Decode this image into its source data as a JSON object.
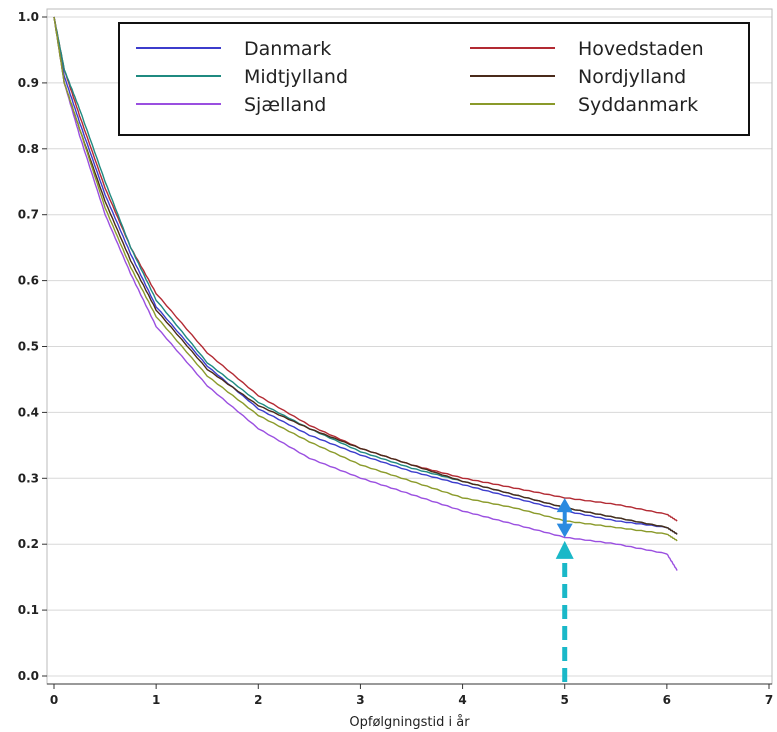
{
  "chart_data": {
    "type": "line",
    "xlabel": "Opfølgningstid i år",
    "ylabel": "",
    "xlim": [
      0,
      7
    ],
    "ylim": [
      0,
      1
    ],
    "x_ticks": [
      "0",
      "1",
      "2",
      "3",
      "4",
      "5",
      "6",
      "7"
    ],
    "y_ticks": [
      "0.0",
      "0.1",
      "0.2",
      "0.3",
      "0.4",
      "0.5",
      "0.6",
      "0.7",
      "0.8",
      "0.9",
      "1.0"
    ],
    "grid": "horizontal",
    "legend_position": "top-right",
    "series": [
      {
        "name": "Danmark",
        "color": "#3c3ccc",
        "x": [
          0,
          0.1,
          0.25,
          0.5,
          0.75,
          1,
          1.5,
          2,
          2.5,
          3,
          3.5,
          4,
          4.5,
          5,
          5.5,
          6,
          6.1
        ],
        "y": [
          1.0,
          0.91,
          0.84,
          0.73,
          0.64,
          0.56,
          0.47,
          0.405,
          0.365,
          0.335,
          0.31,
          0.29,
          0.27,
          0.25,
          0.235,
          0.225,
          0.215
        ]
      },
      {
        "name": "Hovedstaden",
        "color": "#b22a33",
        "x": [
          0,
          0.1,
          0.25,
          0.5,
          0.75,
          1,
          1.5,
          2,
          2.5,
          3,
          3.5,
          4,
          4.5,
          5,
          5.5,
          6,
          6.1
        ],
        "y": [
          1.0,
          0.92,
          0.85,
          0.74,
          0.65,
          0.58,
          0.49,
          0.425,
          0.38,
          0.345,
          0.32,
          0.3,
          0.285,
          0.27,
          0.26,
          0.245,
          0.235
        ]
      },
      {
        "name": "Midtjylland",
        "color": "#1f8a80",
        "x": [
          0,
          0.1,
          0.25,
          0.5,
          0.75,
          1,
          1.5,
          2,
          2.5,
          3,
          3.5,
          4,
          4.5,
          5,
          5.5,
          6,
          6.1
        ],
        "y": [
          1.0,
          0.92,
          0.86,
          0.75,
          0.65,
          0.57,
          0.475,
          0.415,
          0.375,
          0.34,
          0.315,
          0.295,
          0.275,
          0.255,
          0.24,
          0.225,
          0.215
        ]
      },
      {
        "name": "Nordjylland",
        "color": "#4a2a1a",
        "x": [
          0,
          0.1,
          0.25,
          0.5,
          0.75,
          1,
          1.5,
          2,
          2.5,
          3,
          3.5,
          4,
          4.5,
          5,
          5.5,
          6,
          6.1
        ],
        "y": [
          1.0,
          0.9,
          0.83,
          0.72,
          0.63,
          0.555,
          0.465,
          0.41,
          0.375,
          0.345,
          0.32,
          0.295,
          0.275,
          0.255,
          0.24,
          0.225,
          0.215
        ]
      },
      {
        "name": "Sjælland",
        "color": "#9a4fe0",
        "x": [
          0,
          0.1,
          0.25,
          0.5,
          0.75,
          1,
          1.5,
          2,
          2.5,
          3,
          3.5,
          4,
          4.5,
          5,
          5.5,
          6,
          6.1
        ],
        "y": [
          1.0,
          0.9,
          0.82,
          0.7,
          0.61,
          0.53,
          0.44,
          0.375,
          0.33,
          0.3,
          0.275,
          0.25,
          0.23,
          0.21,
          0.2,
          0.185,
          0.16
        ]
      },
      {
        "name": "Syddanmark",
        "color": "#8a9a2a",
        "x": [
          0,
          0.1,
          0.25,
          0.5,
          0.75,
          1,
          1.5,
          2,
          2.5,
          3,
          3.5,
          4,
          4.5,
          5,
          5.5,
          6,
          6.1
        ],
        "y": [
          1.0,
          0.9,
          0.83,
          0.71,
          0.62,
          0.545,
          0.455,
          0.395,
          0.355,
          0.32,
          0.295,
          0.27,
          0.255,
          0.235,
          0.225,
          0.215,
          0.205
        ]
      }
    ],
    "annotations": [
      {
        "type": "double-arrow",
        "x": 5,
        "y_from": 0.21,
        "y_to": 0.27,
        "color": "#2a8ae0"
      },
      {
        "type": "dashed-arrow",
        "x": 5,
        "y_from": 0.0,
        "y_to": 0.205,
        "color": "#1ab8c8"
      }
    ]
  }
}
